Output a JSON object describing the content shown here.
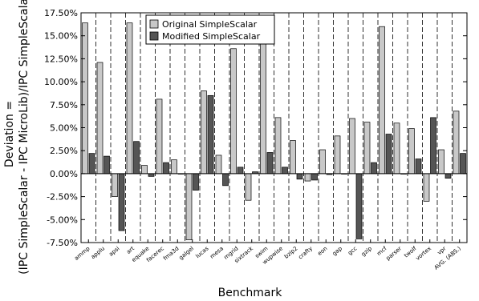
{
  "chart_data": {
    "type": "bar",
    "title": "",
    "xlabel": "Benchmark",
    "ylabel_lines": [
      "Deviation =",
      "(IPC SimpleScalar - IPC MicroLib)/IPC SimpleScalar"
    ],
    "ylim": [
      -7.5,
      17.5
    ],
    "yticks": [
      -7.5,
      -5.0,
      -2.5,
      0.0,
      2.5,
      5.0,
      7.5,
      10.0,
      12.5,
      15.0,
      17.5
    ],
    "ytick_labels": [
      "-7.50%",
      "-5.00%",
      "-2.50%",
      "0.00%",
      "2.50%",
      "5.00%",
      "7.50%",
      "10.00%",
      "12.50%",
      "15.00%",
      "17.50%"
    ],
    "grid": "vertical dashed separators between benchmarks",
    "legend_position": "top-center",
    "categories": [
      "ammp",
      "applu",
      "apsi",
      "art",
      "equake",
      "facerec",
      "fma3d",
      "galgel",
      "lucas",
      "mesa",
      "mgrid",
      "sixtrack",
      "swim",
      "wupwise",
      "bzip2",
      "crafty",
      "eon",
      "gap",
      "gcc",
      "gzip",
      "mcf",
      "parser",
      "twolf",
      "vortex",
      "vpr",
      "AVG. (ABS.)"
    ],
    "series": [
      {
        "name": "Original SimpleScalar",
        "color": "#c8c8c8",
        "values": [
          16.4,
          12.1,
          -2.5,
          16.4,
          0.9,
          8.1,
          1.5,
          -7.2,
          9.0,
          2.0,
          13.6,
          -2.9,
          16.4,
          6.1,
          3.6,
          -0.8,
          2.6,
          4.1,
          6.0,
          5.6,
          16.0,
          5.5,
          4.9,
          -3.0,
          2.6,
          6.8
        ]
      },
      {
        "name": "Modified SimpleScalar",
        "color": "#555555",
        "values": [
          2.2,
          1.9,
          -6.2,
          3.5,
          -0.3,
          1.2,
          0.0,
          -1.8,
          8.5,
          -1.3,
          0.7,
          0.2,
          2.3,
          0.7,
          -0.6,
          -0.7,
          -0.1,
          0.0,
          -7.1,
          1.2,
          4.3,
          0.0,
          1.6,
          6.1,
          -0.5,
          2.2
        ]
      }
    ]
  }
}
